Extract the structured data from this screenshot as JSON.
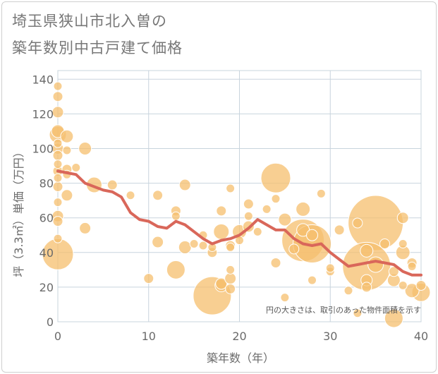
{
  "title": {
    "line1": "埼玉県狭山市北入曽の",
    "line2": "築年数別中古戸建て価格"
  },
  "colors": {
    "bubble_fill": "#f5bf6e",
    "bubble_stroke": "#ffffff",
    "trend_line": "#d9675a",
    "grid": "#c8d4dd",
    "text": "#6b6b6b"
  },
  "chart_data": {
    "type": "scatter",
    "xlabel": "築年数（年）",
    "ylabel": "坪（3.3㎡）単価（万円）",
    "xlim": [
      0,
      40
    ],
    "ylim": [
      0,
      145
    ],
    "x_ticks": [
      0,
      10,
      20,
      30,
      40
    ],
    "y_ticks": [
      0,
      20,
      40,
      60,
      80,
      100,
      120,
      140
    ],
    "grid": true,
    "annotation": "円の大きさは、取引のあった物件面積を示す",
    "series": [
      {
        "type": "bubble",
        "points": [
          {
            "x": 0,
            "y": 136,
            "s": 6
          },
          {
            "x": 0,
            "y": 130,
            "s": 7
          },
          {
            "x": 0,
            "y": 121,
            "s": 8
          },
          {
            "x": 0,
            "y": 110,
            "s": 9
          },
          {
            "x": 0,
            "y": 103,
            "s": 6
          },
          {
            "x": 0,
            "y": 100,
            "s": 8
          },
          {
            "x": 0,
            "y": 96,
            "s": 7
          },
          {
            "x": 0,
            "y": 91,
            "s": 6
          },
          {
            "x": 0,
            "y": 87,
            "s": 7
          },
          {
            "x": 0,
            "y": 83,
            "s": 6
          },
          {
            "x": 0,
            "y": 78,
            "s": 7
          },
          {
            "x": 0,
            "y": 69,
            "s": 6
          },
          {
            "x": 0,
            "y": 61,
            "s": 8
          },
          {
            "x": 0,
            "y": 58,
            "s": 7
          },
          {
            "x": 0,
            "y": 48,
            "s": 6
          },
          {
            "x": 0,
            "y": 39,
            "s": 22
          },
          {
            "x": 0,
            "y": 108,
            "s": 12
          },
          {
            "x": 1,
            "y": 107,
            "s": 9
          },
          {
            "x": 1,
            "y": 99,
            "s": 6
          },
          {
            "x": 1,
            "y": 88,
            "s": 7
          },
          {
            "x": 1,
            "y": 85,
            "s": 6
          },
          {
            "x": 1,
            "y": 73,
            "s": 8
          },
          {
            "x": 2,
            "y": 89,
            "s": 6
          },
          {
            "x": 3,
            "y": 100,
            "s": 9
          },
          {
            "x": 3,
            "y": 54,
            "s": 8
          },
          {
            "x": 4,
            "y": 79,
            "s": 11
          },
          {
            "x": 6,
            "y": 79,
            "s": 7
          },
          {
            "x": 8,
            "y": 73,
            "s": 6
          },
          {
            "x": 10,
            "y": 25,
            "s": 7
          },
          {
            "x": 11,
            "y": 46,
            "s": 8
          },
          {
            "x": 11,
            "y": 73,
            "s": 7
          },
          {
            "x": 13,
            "y": 30,
            "s": 13
          },
          {
            "x": 13,
            "y": 64,
            "s": 7
          },
          {
            "x": 13,
            "y": 61,
            "s": 6
          },
          {
            "x": 14,
            "y": 79,
            "s": 8
          },
          {
            "x": 14,
            "y": 43,
            "s": 9
          },
          {
            "x": 15,
            "y": 45,
            "s": 6
          },
          {
            "x": 16,
            "y": 50,
            "s": 6
          },
          {
            "x": 16,
            "y": 44,
            "s": 6
          },
          {
            "x": 17,
            "y": 15,
            "s": 27
          },
          {
            "x": 17,
            "y": 40,
            "s": 7
          },
          {
            "x": 17,
            "y": 43,
            "s": 6
          },
          {
            "x": 18,
            "y": 21,
            "s": 9
          },
          {
            "x": 18,
            "y": 22,
            "s": 8
          },
          {
            "x": 18,
            "y": 52,
            "s": 11
          },
          {
            "x": 18,
            "y": 64,
            "s": 7
          },
          {
            "x": 19,
            "y": 77,
            "s": 6
          },
          {
            "x": 19,
            "y": 44,
            "s": 7
          },
          {
            "x": 19,
            "y": 43,
            "s": 6
          },
          {
            "x": 19,
            "y": 30,
            "s": 6
          },
          {
            "x": 19,
            "y": 25,
            "s": 8
          },
          {
            "x": 19,
            "y": 19,
            "s": 7
          },
          {
            "x": 20,
            "y": 52,
            "s": 10
          },
          {
            "x": 20,
            "y": 47,
            "s": 6
          },
          {
            "x": 21,
            "y": 55,
            "s": 8
          },
          {
            "x": 21,
            "y": 61,
            "s": 6
          },
          {
            "x": 21,
            "y": 68,
            "s": 7
          },
          {
            "x": 22,
            "y": 52,
            "s": 6
          },
          {
            "x": 23,
            "y": 65,
            "s": 6
          },
          {
            "x": 24,
            "y": 83,
            "s": 21
          },
          {
            "x": 24,
            "y": 71,
            "s": 6
          },
          {
            "x": 24,
            "y": 34,
            "s": 7
          },
          {
            "x": 25,
            "y": 59,
            "s": 9
          },
          {
            "x": 25,
            "y": 14,
            "s": 6
          },
          {
            "x": 26,
            "y": 42,
            "s": 7
          },
          {
            "x": 27,
            "y": 65,
            "s": 10
          },
          {
            "x": 27,
            "y": 53,
            "s": 9
          },
          {
            "x": 27,
            "y": 47,
            "s": 30
          },
          {
            "x": 28,
            "y": 45,
            "s": 27
          },
          {
            "x": 28,
            "y": 50,
            "s": 8
          },
          {
            "x": 28,
            "y": 24,
            "s": 6
          },
          {
            "x": 29,
            "y": 74,
            "s": 6
          },
          {
            "x": 30,
            "y": 29,
            "s": 6
          },
          {
            "x": 30,
            "y": 31,
            "s": 6
          },
          {
            "x": 31,
            "y": 53,
            "s": 7
          },
          {
            "x": 32,
            "y": 18,
            "s": 6
          },
          {
            "x": 33,
            "y": 57,
            "s": 7
          },
          {
            "x": 33,
            "y": 5,
            "s": 6
          },
          {
            "x": 34,
            "y": 32,
            "s": 34
          },
          {
            "x": 34,
            "y": 41,
            "s": 9
          },
          {
            "x": 34,
            "y": 24,
            "s": 8
          },
          {
            "x": 34,
            "y": 20,
            "s": 7
          },
          {
            "x": 35,
            "y": 57,
            "s": 39
          },
          {
            "x": 35,
            "y": 33,
            "s": 11
          },
          {
            "x": 36,
            "y": 45,
            "s": 7
          },
          {
            "x": 37,
            "y": 29,
            "s": 7
          },
          {
            "x": 37,
            "y": 24,
            "s": 9
          },
          {
            "x": 37,
            "y": 2,
            "s": 13
          },
          {
            "x": 38,
            "y": 60,
            "s": 8
          },
          {
            "x": 38,
            "y": 45,
            "s": 6
          },
          {
            "x": 38,
            "y": 40,
            "s": 10
          },
          {
            "x": 38,
            "y": 21,
            "s": 6
          },
          {
            "x": 39,
            "y": 34,
            "s": 7
          },
          {
            "x": 39,
            "y": 32,
            "s": 6
          },
          {
            "x": 39,
            "y": 18,
            "s": 10
          },
          {
            "x": 40,
            "y": 17,
            "s": 13
          },
          {
            "x": 40,
            "y": 21,
            "s": 7
          }
        ]
      },
      {
        "type": "line",
        "x": [
          0,
          1,
          2,
          3,
          4,
          5,
          6,
          7,
          8,
          9,
          10,
          11,
          12,
          13,
          14,
          15,
          16,
          17,
          18,
          19,
          20,
          21,
          22,
          23,
          24,
          25,
          26,
          27,
          28,
          29,
          30,
          31,
          32,
          33,
          34,
          35,
          36,
          37,
          38,
          39,
          40
        ],
        "y": [
          87,
          86,
          85,
          80,
          78,
          76,
          75,
          72,
          63,
          59,
          58,
          55,
          54,
          58,
          56,
          52,
          48,
          45,
          47,
          48,
          50,
          54,
          59,
          56,
          53,
          53,
          48,
          45,
          44,
          45,
          40,
          36,
          32,
          33,
          34,
          35,
          34,
          33,
          29,
          27,
          27
        ]
      }
    ]
  }
}
